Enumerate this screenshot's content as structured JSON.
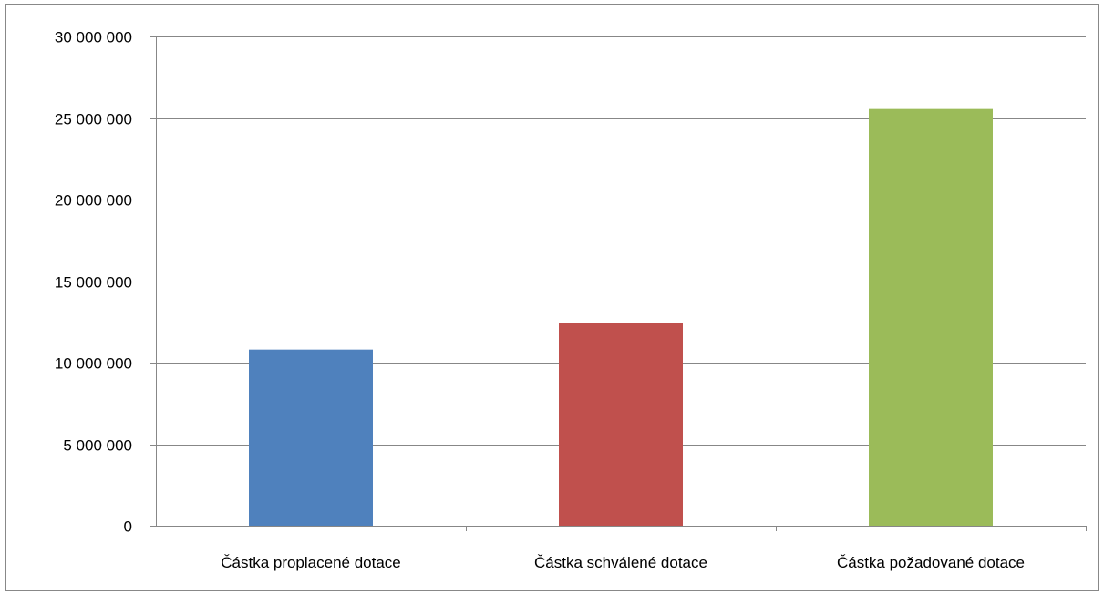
{
  "chart_data": {
    "type": "bar",
    "categories": [
      "Částka proplacené dotace",
      "Částka schválené dotace",
      "Částka požadované dotace"
    ],
    "values": [
      10800000,
      12450000,
      25550000
    ],
    "colors": [
      "#4F81BD",
      "#C0504D",
      "#9BBB59"
    ],
    "ylim": [
      0,
      30000000
    ],
    "ytick_step": 5000000,
    "ytick_labels": [
      "0",
      "5 000 000",
      "10 000 000",
      "15 000 000",
      "20 000 000",
      "25 000 000",
      "30 000 000"
    ],
    "grid": true,
    "legend": "none",
    "title": "",
    "xlabel": "",
    "ylabel": ""
  }
}
